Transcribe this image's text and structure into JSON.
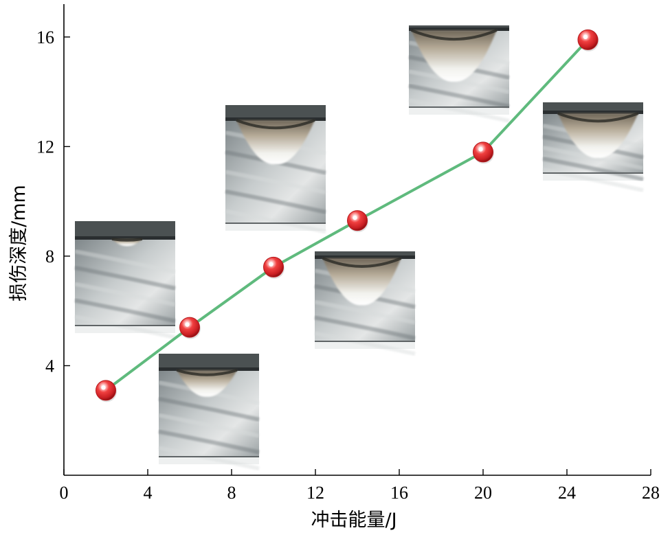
{
  "chart_data": {
    "type": "line",
    "title": "",
    "xlabel": "冲击能量/J",
    "ylabel": "损伤深度/mm",
    "xlim": [
      0,
      28
    ],
    "ylim": [
      0,
      17.2
    ],
    "xticks": [
      0,
      4,
      8,
      12,
      16,
      20,
      24,
      28
    ],
    "yticks": [
      4,
      8,
      12,
      16
    ],
    "grid": false,
    "legend": "none",
    "series": [
      {
        "color": "#5fba7d",
        "marker_color": "#e0302f",
        "x": [
          2,
          6,
          10,
          14,
          20,
          25
        ],
        "y": [
          3.1,
          5.4,
          7.6,
          9.3,
          11.8,
          15.9
        ]
      }
    ],
    "inset_images": [
      {
        "depicts": "damage-cross-section",
        "energy": 2,
        "damage": "shallow"
      },
      {
        "depicts": "damage-cross-section",
        "energy": 6,
        "damage": "small-crater"
      },
      {
        "depicts": "damage-cross-section",
        "energy": 10,
        "damage": "crater"
      },
      {
        "depicts": "damage-cross-section",
        "energy": 14,
        "damage": "crater"
      },
      {
        "depicts": "damage-cross-section",
        "energy": 20,
        "damage": "deep-crater"
      },
      {
        "depicts": "damage-cross-section",
        "energy": 25,
        "damage": "deep-crater"
      }
    ]
  }
}
